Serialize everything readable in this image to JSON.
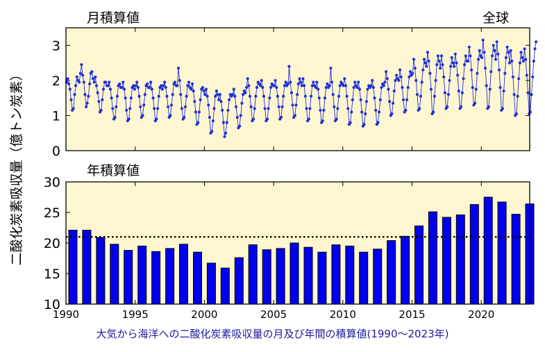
{
  "caption": "大気から海洋への二酸化炭素吸収量の月及び年間の積算値(1990〜2023年)",
  "ylabel": "二酸化炭素吸収量（億トン炭素）",
  "colors": {
    "panel_bg": "#fdf6d0",
    "series": "#1f2fd6",
    "bar": "#0000ee",
    "caption": "#1a1a9a"
  },
  "chart_data": [
    {
      "type": "line",
      "title": "月積算値",
      "region_label": "全球",
      "x_start": 1990.0,
      "x_step_months": 1,
      "xlim": [
        1990,
        2023.5
      ],
      "ylim": [
        0,
        3.5
      ],
      "yticks": [
        0,
        1,
        2,
        3
      ],
      "grid": false,
      "y": [
        1.95,
        2.05,
        1.9,
        1.75,
        1.45,
        1.15,
        1.2,
        1.6,
        1.85,
        2.1,
        2.0,
        1.95,
        2.2,
        2.45,
        2.15,
        1.95,
        1.6,
        1.25,
        1.35,
        1.55,
        1.9,
        2.2,
        2.25,
        2.05,
        1.95,
        2.1,
        1.85,
        1.65,
        1.4,
        1.1,
        1.15,
        1.45,
        1.75,
        1.95,
        1.95,
        1.85,
        1.85,
        1.95,
        1.75,
        1.5,
        1.2,
        0.9,
        0.95,
        1.25,
        1.55,
        1.85,
        1.9,
        1.8,
        1.8,
        1.95,
        1.75,
        1.5,
        1.15,
        0.85,
        0.9,
        1.2,
        1.5,
        1.8,
        1.85,
        1.75,
        1.85,
        1.95,
        1.8,
        1.55,
        1.25,
        0.95,
        1.0,
        1.3,
        1.6,
        1.85,
        1.9,
        1.8,
        1.8,
        1.95,
        1.75,
        1.5,
        1.2,
        0.85,
        0.9,
        1.2,
        1.55,
        1.8,
        1.85,
        1.75,
        1.85,
        1.95,
        1.8,
        1.55,
        1.25,
        0.95,
        1.0,
        1.3,
        1.6,
        1.9,
        1.95,
        1.85,
        1.85,
        2.35,
        2.0,
        1.6,
        1.2,
        0.9,
        0.95,
        1.25,
        1.55,
        1.85,
        1.95,
        1.8,
        1.75,
        1.9,
        1.7,
        1.4,
        1.1,
        0.75,
        0.8,
        1.1,
        1.45,
        1.75,
        1.8,
        1.7,
        1.6,
        1.75,
        1.55,
        1.3,
        0.95,
        0.5,
        0.55,
        0.85,
        1.2,
        1.55,
        1.7,
        1.6,
        1.45,
        1.6,
        1.4,
        1.15,
        0.8,
        0.4,
        0.5,
        0.8,
        1.15,
        1.45,
        1.6,
        1.55,
        1.6,
        1.75,
        1.55,
        1.25,
        0.95,
        0.65,
        0.7,
        1.0,
        1.35,
        1.6,
        1.7,
        1.65,
        1.8,
        2.05,
        1.85,
        1.55,
        1.25,
        0.85,
        0.9,
        1.2,
        1.55,
        1.8,
        1.95,
        1.9,
        1.85,
        2.0,
        1.8,
        1.55,
        1.2,
        0.85,
        0.9,
        1.2,
        1.5,
        1.8,
        1.9,
        1.85,
        1.85,
        2.0,
        1.8,
        1.55,
        1.25,
        0.9,
        0.95,
        1.25,
        1.55,
        1.85,
        1.95,
        1.85,
        1.9,
        2.4,
        1.95,
        1.65,
        1.3,
        0.95,
        1.0,
        1.3,
        1.6,
        1.9,
        2.05,
        1.95,
        1.85,
        2.05,
        1.85,
        1.55,
        1.2,
        0.85,
        0.9,
        1.2,
        1.55,
        1.85,
        1.95,
        1.85,
        1.8,
        1.95,
        1.75,
        1.5,
        1.15,
        0.8,
        0.85,
        1.15,
        1.5,
        1.8,
        1.9,
        1.8,
        1.85,
        2.35,
        1.95,
        1.6,
        1.25,
        0.85,
        0.9,
        1.2,
        1.55,
        1.85,
        1.95,
        1.9,
        1.85,
        2.05,
        1.85,
        1.55,
        1.2,
        0.75,
        0.8,
        1.1,
        1.45,
        1.8,
        1.95,
        1.85,
        1.8,
        1.95,
        1.75,
        1.45,
        1.1,
        0.7,
        0.75,
        1.05,
        1.4,
        1.75,
        1.85,
        1.8,
        1.85,
        2.0,
        1.8,
        1.5,
        1.15,
        0.75,
        0.8,
        1.1,
        1.45,
        1.8,
        1.9,
        1.85,
        1.95,
        2.25,
        2.05,
        1.75,
        1.4,
        1.0,
        1.05,
        1.35,
        1.7,
        2.0,
        2.15,
        2.05,
        2.0,
        2.3,
        2.1,
        1.8,
        1.45,
        1.1,
        1.15,
        1.45,
        1.8,
        2.1,
        2.25,
        2.15,
        2.2,
        2.6,
        2.35,
        2.0,
        1.6,
        1.15,
        1.2,
        1.55,
        1.95,
        2.3,
        2.6,
        2.5,
        2.4,
        2.8,
        2.55,
        2.2,
        1.75,
        1.05,
        1.1,
        1.55,
        2.0,
        2.45,
        2.7,
        2.55,
        2.35,
        2.7,
        2.45,
        2.1,
        1.65,
        1.2,
        1.25,
        1.6,
        2.0,
        2.4,
        2.65,
        2.5,
        2.4,
        2.75,
        2.5,
        2.15,
        1.7,
        1.2,
        1.25,
        1.65,
        2.05,
        2.45,
        2.7,
        2.55,
        2.55,
        2.95,
        2.7,
        2.3,
        1.8,
        1.3,
        1.35,
        1.75,
        2.2,
        2.6,
        2.85,
        2.7,
        2.65,
        3.15,
        2.8,
        2.35,
        1.85,
        1.2,
        1.25,
        1.75,
        2.25,
        2.7,
        3.0,
        2.85,
        2.6,
        3.1,
        2.75,
        2.3,
        1.8,
        1.15,
        1.2,
        1.7,
        2.2,
        2.65,
        2.95,
        2.8,
        2.5,
        2.85,
        2.55,
        2.1,
        1.6,
        1.0,
        1.05,
        1.55,
        2.05,
        2.5,
        2.8,
        2.65,
        2.55,
        2.9,
        2.6,
        2.15,
        1.65,
        1.05,
        1.1,
        1.6,
        2.1,
        2.55,
        2.9,
        3.1
      ]
    },
    {
      "type": "bar",
      "title": "年積算値",
      "categories": [
        1990,
        1991,
        1992,
        1993,
        1994,
        1995,
        1996,
        1997,
        1998,
        1999,
        2000,
        2001,
        2002,
        2003,
        2004,
        2005,
        2006,
        2007,
        2008,
        2009,
        2010,
        2011,
        2012,
        2013,
        2014,
        2015,
        2016,
        2017,
        2018,
        2019,
        2020,
        2021,
        2022,
        2023
      ],
      "values": [
        22.1,
        22.1,
        20.9,
        19.8,
        18.8,
        19.5,
        18.6,
        19.1,
        19.8,
        18.5,
        16.7,
        15.9,
        17.6,
        19.7,
        18.9,
        19.1,
        20.0,
        19.3,
        18.5,
        19.7,
        19.5,
        18.5,
        19.0,
        20.4,
        21.1,
        22.8,
        25.1,
        24.2,
        24.6,
        26.3,
        27.5,
        26.7,
        24.7,
        26.4
      ],
      "mean_line": 21.0,
      "xticks": [
        1990,
        1995,
        2000,
        2005,
        2010,
        2015,
        2020
      ],
      "ylim": [
        10,
        30
      ],
      "yticks": [
        10,
        15,
        20,
        25,
        30
      ],
      "grid": false
    }
  ]
}
